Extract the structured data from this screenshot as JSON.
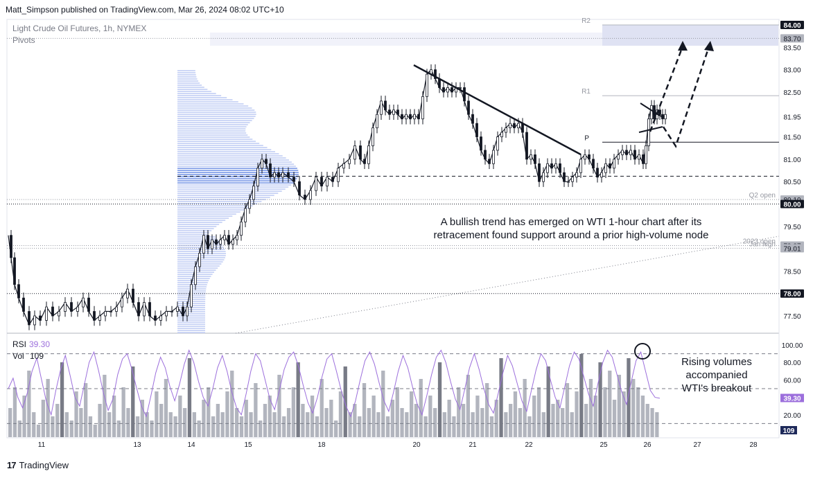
{
  "header": {
    "publisher": "Matt_Simpson published on TradingView.com, Mar 26, 2024 08:02 UTC+10"
  },
  "chart_data": {
    "type": "line",
    "title": "Light Crude Oil Futures, 1h, NYMEX",
    "indicator_label": "Pivots",
    "x_ticks": [
      "11",
      "13",
      "14",
      "15",
      "18",
      "20",
      "21",
      "22",
      "25",
      "26",
      "27",
      "28"
    ],
    "y_ticks": [
      83.5,
      83.0,
      82.5,
      81.5,
      81.0,
      80.5,
      79.5,
      78.5,
      78.0,
      77.5
    ],
    "ylim": [
      77.2,
      84.15
    ],
    "price_series": [
      {
        "x": 0,
        "y": 79.3
      },
      {
        "x": 4,
        "y": 78.8
      },
      {
        "x": 9,
        "y": 78.2
      },
      {
        "x": 15,
        "y": 77.9
      },
      {
        "x": 22,
        "y": 77.6
      },
      {
        "x": 30,
        "y": 77.3
      },
      {
        "x": 38,
        "y": 77.5
      },
      {
        "x": 46,
        "y": 77.4
      },
      {
        "x": 55,
        "y": 77.7
      },
      {
        "x": 64,
        "y": 77.5
      },
      {
        "x": 73,
        "y": 77.6
      },
      {
        "x": 82,
        "y": 77.8
      },
      {
        "x": 91,
        "y": 77.6
      },
      {
        "x": 100,
        "y": 77.7
      },
      {
        "x": 108,
        "y": 77.9
      },
      {
        "x": 116,
        "y": 77.6
      },
      {
        "x": 124,
        "y": 77.4
      },
      {
        "x": 132,
        "y": 77.5
      },
      {
        "x": 140,
        "y": 77.6
      },
      {
        "x": 148,
        "y": 77.6
      },
      {
        "x": 156,
        "y": 77.7
      },
      {
        "x": 164,
        "y": 77.9
      },
      {
        "x": 172,
        "y": 78.1
      },
      {
        "x": 180,
        "y": 77.8
      },
      {
        "x": 188,
        "y": 77.5
      },
      {
        "x": 196,
        "y": 77.8
      },
      {
        "x": 204,
        "y": 77.5
      },
      {
        "x": 212,
        "y": 77.4
      },
      {
        "x": 220,
        "y": 77.5
      },
      {
        "x": 228,
        "y": 77.6
      },
      {
        "x": 236,
        "y": 77.6
      },
      {
        "x": 244,
        "y": 77.7
      },
      {
        "x": 252,
        "y": 77.5
      },
      {
        "x": 258,
        "y": 77.7
      },
      {
        "x": 264,
        "y": 78.2
      },
      {
        "x": 270,
        "y": 78.6
      },
      {
        "x": 276,
        "y": 78.9
      },
      {
        "x": 282,
        "y": 79.3
      },
      {
        "x": 288,
        "y": 79.0
      },
      {
        "x": 294,
        "y": 79.2
      },
      {
        "x": 300,
        "y": 79.1
      },
      {
        "x": 306,
        "y": 79.2
      },
      {
        "x": 312,
        "y": 79.3
      },
      {
        "x": 318,
        "y": 79.1
      },
      {
        "x": 324,
        "y": 79.2
      },
      {
        "x": 330,
        "y": 79.3
      },
      {
        "x": 336,
        "y": 79.6
      },
      {
        "x": 342,
        "y": 79.9
      },
      {
        "x": 348,
        "y": 80.1
      },
      {
        "x": 354,
        "y": 80.4
      },
      {
        "x": 360,
        "y": 80.8
      },
      {
        "x": 366,
        "y": 81.0
      },
      {
        "x": 372,
        "y": 80.9
      },
      {
        "x": 378,
        "y": 80.6
      },
      {
        "x": 384,
        "y": 80.7
      },
      {
        "x": 390,
        "y": 80.6
      },
      {
        "x": 396,
        "y": 80.7
      },
      {
        "x": 404,
        "y": 80.6
      },
      {
        "x": 412,
        "y": 80.5
      },
      {
        "x": 420,
        "y": 80.2
      },
      {
        "x": 428,
        "y": 80.1
      },
      {
        "x": 436,
        "y": 80.3
      },
      {
        "x": 444,
        "y": 80.6
      },
      {
        "x": 452,
        "y": 80.4
      },
      {
        "x": 460,
        "y": 80.6
      },
      {
        "x": 468,
        "y": 80.5
      },
      {
        "x": 476,
        "y": 80.8
      },
      {
        "x": 484,
        "y": 80.9
      },
      {
        "x": 492,
        "y": 81.0
      },
      {
        "x": 500,
        "y": 81.3
      },
      {
        "x": 508,
        "y": 81.0
      },
      {
        "x": 514,
        "y": 80.9
      },
      {
        "x": 520,
        "y": 81.3
      },
      {
        "x": 526,
        "y": 81.7
      },
      {
        "x": 532,
        "y": 82.0
      },
      {
        "x": 538,
        "y": 82.3
      },
      {
        "x": 544,
        "y": 82.1
      },
      {
        "x": 550,
        "y": 82.0
      },
      {
        "x": 556,
        "y": 82.1
      },
      {
        "x": 562,
        "y": 82.0
      },
      {
        "x": 568,
        "y": 81.9
      },
      {
        "x": 574,
        "y": 82.0
      },
      {
        "x": 580,
        "y": 81.9
      },
      {
        "x": 586,
        "y": 82.0
      },
      {
        "x": 592,
        "y": 81.9
      },
      {
        "x": 598,
        "y": 82.4
      },
      {
        "x": 604,
        "y": 82.9
      },
      {
        "x": 610,
        "y": 83.0
      },
      {
        "x": 616,
        "y": 82.8
      },
      {
        "x": 622,
        "y": 82.6
      },
      {
        "x": 628,
        "y": 82.5
      },
      {
        "x": 634,
        "y": 82.6
      },
      {
        "x": 640,
        "y": 82.5
      },
      {
        "x": 646,
        "y": 82.6
      },
      {
        "x": 652,
        "y": 82.6
      },
      {
        "x": 658,
        "y": 82.3
      },
      {
        "x": 664,
        "y": 82.0
      },
      {
        "x": 670,
        "y": 81.8
      },
      {
        "x": 676,
        "y": 81.5
      },
      {
        "x": 682,
        "y": 81.2
      },
      {
        "x": 688,
        "y": 81.0
      },
      {
        "x": 694,
        "y": 80.9
      },
      {
        "x": 700,
        "y": 81.2
      },
      {
        "x": 706,
        "y": 81.5
      },
      {
        "x": 712,
        "y": 81.6
      },
      {
        "x": 718,
        "y": 81.7
      },
      {
        "x": 724,
        "y": 81.8
      },
      {
        "x": 730,
        "y": 81.7
      },
      {
        "x": 736,
        "y": 81.8
      },
      {
        "x": 742,
        "y": 81.6
      },
      {
        "x": 748,
        "y": 81.0
      },
      {
        "x": 754,
        "y": 81.1
      },
      {
        "x": 760,
        "y": 80.9
      },
      {
        "x": 766,
        "y": 80.5
      },
      {
        "x": 772,
        "y": 80.7
      },
      {
        "x": 778,
        "y": 80.9
      },
      {
        "x": 784,
        "y": 80.8
      },
      {
        "x": 790,
        "y": 80.9
      },
      {
        "x": 796,
        "y": 80.7
      },
      {
        "x": 802,
        "y": 80.5
      },
      {
        "x": 808,
        "y": 80.5
      },
      {
        "x": 814,
        "y": 80.6
      },
      {
        "x": 820,
        "y": 80.7
      },
      {
        "x": 826,
        "y": 81.0
      },
      {
        "x": 832,
        "y": 81.1
      },
      {
        "x": 838,
        "y": 81.0
      },
      {
        "x": 844,
        "y": 80.8
      },
      {
        "x": 850,
        "y": 80.6
      },
      {
        "x": 856,
        "y": 80.7
      },
      {
        "x": 862,
        "y": 80.9
      },
      {
        "x": 868,
        "y": 80.8
      },
      {
        "x": 874,
        "y": 81.0
      },
      {
        "x": 880,
        "y": 81.1
      },
      {
        "x": 886,
        "y": 81.2
      },
      {
        "x": 892,
        "y": 81.1
      },
      {
        "x": 898,
        "y": 81.2
      },
      {
        "x": 904,
        "y": 81.0
      },
      {
        "x": 910,
        "y": 81.1
      },
      {
        "x": 916,
        "y": 80.9
      },
      {
        "x": 920,
        "y": 81.3
      },
      {
        "x": 924,
        "y": 81.9
      },
      {
        "x": 928,
        "y": 82.2
      },
      {
        "x": 932,
        "y": 81.9
      },
      {
        "x": 936,
        "y": 82.1
      },
      {
        "x": 940,
        "y": 82.0
      },
      {
        "x": 944,
        "y": 81.9
      },
      {
        "x": 948,
        "y": 82.0
      }
    ],
    "levels": [
      {
        "price": 84.0,
        "label": "R2",
        "axis_label": "84.00",
        "style": "solid",
        "color": "#b2b5be"
      },
      {
        "price": 83.7,
        "label": "",
        "axis_label": "83.70",
        "style": "dotted",
        "color": "#9598a1"
      },
      {
        "price": 82.42,
        "label": "R1",
        "axis_label": "",
        "style": "solid",
        "color": "#b2b5be"
      },
      {
        "price": 81.95,
        "label": "",
        "axis_label": "81.95",
        "style": "none",
        "color": "#ffffff"
      },
      {
        "price": 81.38,
        "label": "P",
        "axis_label": "",
        "style": "solid",
        "color": "#131722"
      },
      {
        "price": 80.62,
        "label": "",
        "axis_label": "",
        "style": "dashed",
        "color": "#131722"
      },
      {
        "price": 80.1,
        "label": "Q2 open",
        "axis_label": "80.10",
        "style": "dotted",
        "color": "#9598a1"
      },
      {
        "price": 80.0,
        "label": "",
        "axis_label": "80.00",
        "style": "dotted",
        "color": "#131722"
      },
      {
        "price": 79.07,
        "label": "2023 open",
        "axis_label": "79.07",
        "style": "dotted",
        "color": "#9598a1"
      },
      {
        "price": 79.01,
        "label": "Jan high",
        "axis_label": "79.01",
        "style": "dotted",
        "color": "#9598a1"
      },
      {
        "price": 78.0,
        "label": "",
        "axis_label": "78.00",
        "style": "dotted",
        "color": "#131722"
      }
    ],
    "annotations": [
      "A bullish trend has emerged on WTI 1-hour chart after its",
      "retracement found support around a prior high-volume node"
    ],
    "rsi": {
      "label": "RSI",
      "value": "39.30",
      "axis_label": "39.30",
      "y_ticks": [
        100.0,
        80.0,
        60.0,
        20.0
      ],
      "tick_labels": [
        "100.00",
        "80.00",
        "60.00",
        "20.00"
      ],
      "overbought": 90,
      "oversold": 10,
      "color": "#9c6fdc",
      "values": [
        50,
        62,
        40,
        28,
        45,
        70,
        85,
        60,
        35,
        20,
        48,
        72,
        88,
        65,
        40,
        30,
        55,
        80,
        92,
        70,
        45,
        25,
        38,
        66,
        84,
        90,
        72,
        50,
        30,
        18,
        42,
        68,
        86,
        74,
        52,
        36,
        55,
        78,
        94,
        80,
        58,
        40,
        30,
        50,
        74,
        88,
        70,
        46,
        28,
        20,
        44,
        70,
        90,
        82,
        60,
        38,
        26,
        48,
        72,
        86,
        92,
        76,
        54,
        34,
        22,
        40,
        64,
        84,
        90,
        70,
        48,
        30,
        18,
        36,
        60,
        82,
        92,
        78,
        56,
        36,
        24,
        46,
        70,
        88,
        74,
        52,
        32,
        20,
        42,
        66,
        86,
        94,
        80,
        58,
        38,
        26,
        50,
        74,
        90,
        72,
        50,
        32,
        22,
        44,
        68,
        88,
        76,
        56,
        36,
        24,
        48,
        72,
        90,
        82,
        60,
        40,
        28,
        52,
        76,
        92,
        84,
        64,
        44,
        30,
        56,
        80,
        94,
        86,
        66,
        46,
        32,
        58,
        82,
        92,
        70,
        48,
        40,
        39
      ]
    },
    "volume": {
      "label": "Vol",
      "value": "109",
      "axis_label": "109",
      "color": "#9598a1",
      "values": [
        35,
        60,
        20,
        50,
        80,
        30,
        15,
        45,
        70,
        25,
        40,
        90,
        30,
        20,
        55,
        35,
        65,
        25,
        15,
        40,
        75,
        30,
        50,
        20,
        60,
        35,
        85,
        25,
        45,
        30,
        20,
        55,
        40,
        70,
        30,
        25,
        50,
        35,
        95,
        30,
        20,
        45,
        60,
        25,
        40,
        30,
        55,
        80,
        35,
        25,
        45,
        30,
        65,
        20,
        40,
        50,
        30,
        75,
        25,
        35,
        60,
        90,
        40,
        30,
        50,
        25,
        70,
        35,
        45,
        20,
        55,
        85,
        30,
        40,
        25,
        65,
        35,
        50,
        30,
        80,
        25,
        45,
        60,
        35,
        30,
        55,
        40,
        70,
        25,
        50,
        35,
        90,
        30,
        45,
        25,
        60,
        40,
        75,
        30,
        50,
        35,
        65,
        25,
        45,
        95,
        30,
        40,
        55,
        35,
        70,
        25,
        50,
        60,
        30,
        85,
        40,
        45,
        35,
        65,
        30,
        55,
        100,
        40,
        70,
        50,
        90,
        60,
        80,
        45,
        75,
        55,
        95,
        70,
        60,
        50,
        40,
        35,
        30
      ]
    },
    "volume_annotation": [
      "Rising volumes",
      "accompanied",
      "WTI's breakout"
    ]
  }
}
